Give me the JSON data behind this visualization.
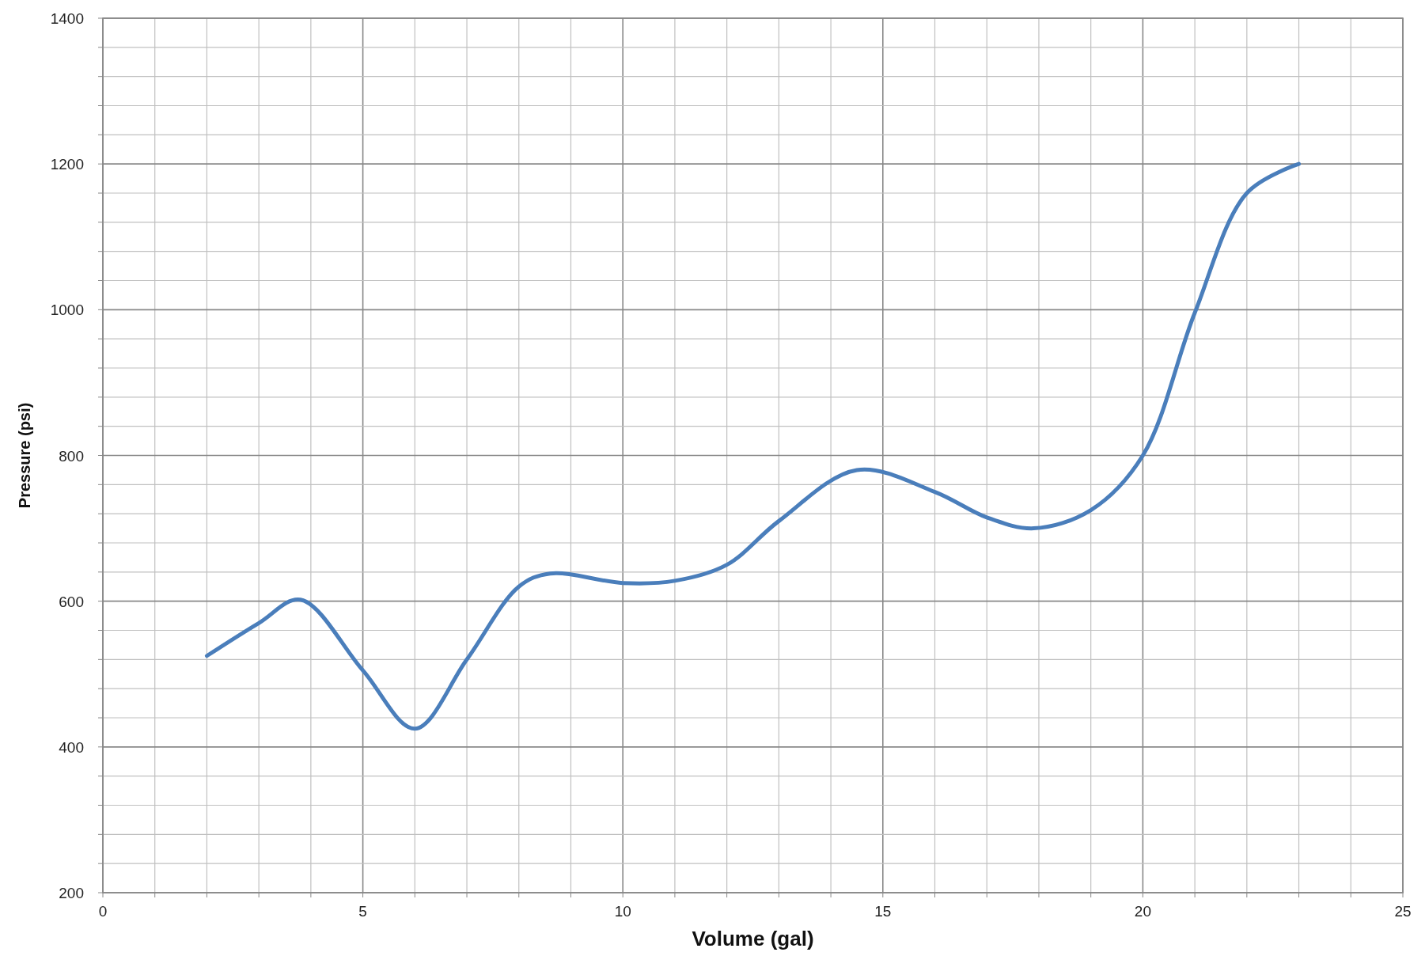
{
  "chart_data": {
    "type": "line",
    "xlabel": "Volume (gal)",
    "ylabel": "Pressure (psi)",
    "x": [
      2,
      3,
      3.8,
      5,
      6,
      7,
      8,
      8.6,
      10,
      11,
      12,
      13,
      14.5,
      16,
      17,
      17.9,
      19,
      20,
      21,
      22,
      23
    ],
    "series": [
      {
        "color": "#4a7ebb",
        "values": [
          525,
          570,
          602,
          505,
          425,
          520,
          620,
          638,
          625,
          628,
          650,
          710,
          780,
          750,
          715,
          700,
          725,
          800,
          996,
          1160,
          1200
        ]
      }
    ],
    "xlim": [
      0,
      25
    ],
    "xticks": [
      0,
      {
        "value": 1,
        "label": null
      },
      {
        "value": 2,
        "label": null
      },
      {
        "value": 3,
        "label": null
      },
      {
        "value": 4,
        "label": null
      },
      5,
      {
        "value": 6,
        "label": null
      },
      {
        "value": 7,
        "label": null
      },
      {
        "value": 8,
        "label": null
      },
      {
        "value": 9,
        "label": null
      },
      10,
      {
        "value": 11,
        "label": null
      },
      {
        "value": 12,
        "label": null
      },
      {
        "value": 13,
        "label": null
      },
      {
        "value": 14,
        "label": null
      },
      15,
      {
        "value": 16,
        "label": null
      },
      {
        "value": 17,
        "label": null
      },
      {
        "value": 18,
        "label": null
      },
      {
        "value": 19,
        "label": null
      },
      20,
      {
        "value": 21,
        "label": null
      },
      {
        "value": 22,
        "label": null
      },
      {
        "value": 23,
        "label": null
      },
      {
        "value": 24,
        "label": null
      },
      25
    ],
    "ylim": [
      200,
      1400
    ],
    "yticks": [
      200,
      {
        "value": 240,
        "label": null
      },
      {
        "value": 280,
        "label": null
      },
      {
        "value": 320,
        "label": null
      },
      {
        "value": 360,
        "label": null
      },
      400,
      {
        "value": 440,
        "label": null
      },
      {
        "value": 480,
        "label": null
      },
      {
        "value": 520,
        "label": null
      },
      {
        "value": 560,
        "label": null
      },
      600,
      {
        "value": 640,
        "label": null
      },
      {
        "value": 680,
        "label": null
      },
      {
        "value": 720,
        "label": null
      },
      {
        "value": 760,
        "label": null
      },
      800,
      {
        "value": 840,
        "label": null
      },
      {
        "value": 880,
        "label": null
      },
      {
        "value": 920,
        "label": null
      },
      {
        "value": 960,
        "label": null
      },
      1000,
      {
        "value": 1040,
        "label": null
      },
      {
        "value": 1080,
        "label": null
      },
      {
        "value": 1120,
        "label": null
      },
      {
        "value": 1160,
        "label": null
      },
      1200,
      {
        "value": 1240,
        "label": null
      },
      {
        "value": 1280,
        "label": null
      },
      {
        "value": 1320,
        "label": null
      },
      {
        "value": 1360,
        "label": null
      },
      1400
    ],
    "grid": true,
    "line_style": "solid",
    "marker": "none"
  }
}
